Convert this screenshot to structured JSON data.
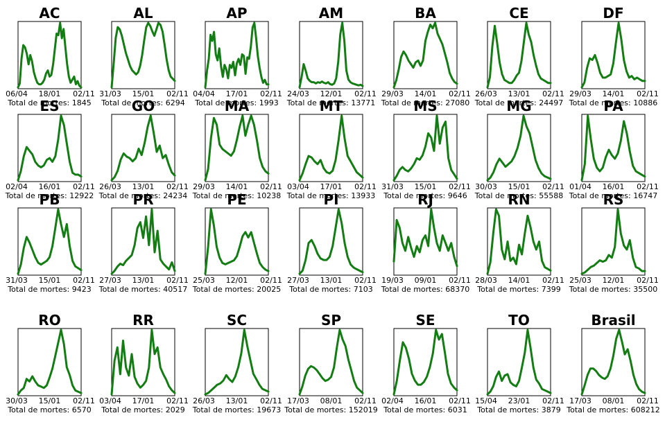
{
  "colors": {
    "line": "#137d13",
    "axis": "#000000"
  },
  "total_prefix": "Total de mortes: ",
  "chart_data": [
    {
      "type": "line",
      "title": "AC",
      "xticks": [
        "06/04",
        "18/01",
        "02/11"
      ],
      "total": "1845",
      "y": [
        0,
        5,
        38,
        55,
        52,
        44,
        30,
        42,
        34,
        20,
        12,
        6,
        4,
        4,
        6,
        10,
        18,
        22,
        14,
        16,
        30,
        50,
        70,
        68,
        84,
        64,
        76,
        52,
        30,
        14,
        6,
        10,
        14,
        4,
        8,
        2,
        0
      ]
    },
    {
      "type": "line",
      "title": "AL",
      "xticks": [
        "31/03",
        "15/01",
        "02/11"
      ],
      "total": "6294",
      "y": [
        0,
        22,
        46,
        56,
        54,
        48,
        40,
        32,
        26,
        20,
        16,
        14,
        12,
        14,
        20,
        30,
        44,
        56,
        60,
        57,
        52,
        48,
        54,
        60,
        58,
        52,
        40,
        26,
        16,
        10,
        8,
        6
      ]
    },
    {
      "type": "line",
      "title": "AP",
      "xticks": [
        "04/04",
        "17/01",
        "02/11"
      ],
      "total": "1993",
      "y": [
        0,
        22,
        38,
        70,
        62,
        74,
        44,
        36,
        52,
        28,
        14,
        30,
        24,
        12,
        30,
        26,
        34,
        16,
        32,
        38,
        30,
        44,
        42,
        18,
        40,
        38,
        54,
        80,
        86,
        66,
        42,
        26,
        14,
        6,
        10,
        4,
        4
      ]
    },
    {
      "type": "line",
      "title": "AM",
      "xticks": [
        "24/03",
        "12/01",
        "02/11"
      ],
      "total": "13771",
      "y": [
        0,
        16,
        36,
        26,
        14,
        10,
        8,
        8,
        6,
        8,
        7,
        9,
        7,
        6,
        8,
        5,
        4,
        6,
        14,
        40,
        82,
        100,
        72,
        26,
        12,
        8,
        6,
        5,
        4,
        3,
        4,
        2
      ]
    },
    {
      "type": "line",
      "title": "BA",
      "xticks": [
        "29/03",
        "14/01",
        "02/11"
      ],
      "total": "27080",
      "y": [
        0,
        8,
        20,
        34,
        40,
        36,
        30,
        26,
        22,
        28,
        30,
        24,
        30,
        52,
        62,
        70,
        66,
        72,
        60,
        54,
        48,
        38,
        28,
        16,
        10,
        6,
        4
      ]
    },
    {
      "type": "line",
      "title": "CE",
      "xticks": [
        "26/03",
        "13/01",
        "02/11"
      ],
      "total": "24497",
      "y": [
        0,
        14,
        56,
        84,
        60,
        34,
        18,
        10,
        8,
        6,
        6,
        10,
        16,
        20,
        36,
        62,
        88,
        72,
        62,
        44,
        30,
        18,
        12,
        10,
        8,
        6,
        6
      ]
    },
    {
      "type": "line",
      "title": "DF",
      "xticks": [
        "29/03",
        "14/01",
        "02/11"
      ],
      "total": "10886",
      "y": [
        0,
        6,
        24,
        36,
        34,
        40,
        30,
        18,
        12,
        12,
        14,
        16,
        30,
        56,
        80,
        60,
        34,
        20,
        12,
        14,
        10,
        12,
        10,
        8,
        8
      ]
    },
    {
      "type": "line",
      "title": "ES",
      "xticks": [
        "02/04",
        "16/01",
        "02/11"
      ],
      "total": "12922",
      "y": [
        0,
        10,
        26,
        36,
        32,
        28,
        20,
        16,
        14,
        16,
        22,
        24,
        20,
        26,
        44,
        70,
        60,
        40,
        20,
        8,
        6,
        6,
        4
      ]
    },
    {
      "type": "line",
      "title": "GO",
      "xticks": [
        "26/03",
        "13/01",
        "02/11"
      ],
      "total": "24234",
      "y": [
        0,
        4,
        12,
        26,
        34,
        30,
        28,
        24,
        28,
        40,
        32,
        48,
        68,
        82,
        60,
        36,
        44,
        28,
        32,
        20,
        10,
        6
      ]
    },
    {
      "type": "line",
      "title": "MA",
      "xticks": [
        "29/03",
        "14/01",
        "02/11"
      ],
      "total": "10238",
      "y": [
        0,
        10,
        38,
        56,
        50,
        32,
        28,
        26,
        24,
        22,
        26,
        36,
        48,
        58,
        40,
        50,
        58,
        50,
        36,
        20,
        12,
        8,
        6
      ]
    },
    {
      "type": "line",
      "title": "MT",
      "xticks": [
        "03/04",
        "17/01",
        "02/11"
      ],
      "total": "13933",
      "y": [
        0,
        10,
        24,
        36,
        34,
        28,
        24,
        30,
        18,
        12,
        10,
        14,
        30,
        60,
        96,
        62,
        36,
        28,
        20,
        12,
        8,
        4
      ]
    },
    {
      "type": "line",
      "title": "MS",
      "xticks": [
        "31/03",
        "15/01",
        "02/11"
      ],
      "total": "9646",
      "y": [
        0,
        6,
        14,
        18,
        14,
        12,
        16,
        22,
        30,
        28,
        34,
        46,
        64,
        58,
        40,
        88,
        50,
        72,
        80,
        30,
        14,
        8,
        2
      ]
    },
    {
      "type": "line",
      "title": "MG",
      "xticks": [
        "30/03",
        "15/01",
        "02/11"
      ],
      "total": "55588",
      "y": [
        0,
        4,
        12,
        24,
        32,
        26,
        20,
        24,
        28,
        36,
        48,
        66,
        96,
        80,
        70,
        50,
        30,
        18,
        10,
        6,
        4,
        2
      ]
    },
    {
      "type": "line",
      "title": "PA",
      "xticks": [
        "01/04",
        "16/01",
        "02/11"
      ],
      "total": "16747",
      "y": [
        0,
        18,
        72,
        46,
        24,
        14,
        10,
        14,
        26,
        34,
        28,
        24,
        30,
        44,
        66,
        52,
        32,
        16,
        10,
        8,
        6,
        4
      ]
    },
    {
      "type": "line",
      "title": "PB",
      "xticks": [
        "31/03",
        "15/01",
        "02/11"
      ],
      "total": "9423",
      "y": [
        0,
        10,
        28,
        40,
        34,
        26,
        18,
        12,
        10,
        12,
        14,
        18,
        30,
        50,
        70,
        54,
        40,
        54,
        30,
        14,
        8,
        6,
        4
      ]
    },
    {
      "type": "line",
      "title": "PR",
      "xticks": [
        "27/03",
        "13/01",
        "02/11"
      ],
      "total": "40517",
      "y": [
        0,
        4,
        10,
        14,
        12,
        18,
        22,
        26,
        40,
        64,
        72,
        50,
        80,
        40,
        90,
        30,
        60,
        20,
        14,
        10,
        6,
        16,
        4
      ]
    },
    {
      "type": "line",
      "title": "PE",
      "xticks": [
        "25/03",
        "12/01",
        "02/11"
      ],
      "total": "20025",
      "y": [
        0,
        40,
        96,
        72,
        40,
        24,
        16,
        14,
        16,
        18,
        20,
        26,
        40,
        56,
        62,
        54,
        62,
        46,
        30,
        16,
        10,
        6,
        4
      ]
    },
    {
      "type": "line",
      "title": "PI",
      "xticks": [
        "27/03",
        "13/01",
        "02/11"
      ],
      "total": "7103",
      "y": [
        0,
        4,
        18,
        40,
        44,
        36,
        26,
        20,
        18,
        18,
        22,
        36,
        60,
        84,
        66,
        40,
        22,
        12,
        8,
        6,
        4,
        2
      ]
    },
    {
      "type": "line",
      "title": "RJ",
      "xticks": [
        "19/03",
        "09/01",
        "02/11"
      ],
      "total": "68370",
      "y": [
        16,
        70,
        60,
        40,
        30,
        48,
        34,
        22,
        36,
        28,
        44,
        50,
        36,
        84,
        60,
        40,
        30,
        50,
        40,
        30,
        40,
        22,
        10
      ]
    },
    {
      "type": "line",
      "title": "RN",
      "xticks": [
        "28/03",
        "14/01",
        "02/11"
      ],
      "total": "7399",
      "y": [
        0,
        14,
        50,
        80,
        72,
        30,
        18,
        40,
        16,
        20,
        12,
        36,
        24,
        50,
        72,
        58,
        40,
        30,
        40,
        16,
        8,
        6,
        4
      ]
    },
    {
      "type": "line",
      "title": "RS",
      "xticks": [
        "25/03",
        "12/01",
        "02/11"
      ],
      "total": "35500",
      "y": [
        0,
        2,
        6,
        10,
        12,
        16,
        20,
        18,
        20,
        28,
        24,
        40,
        96,
        60,
        42,
        36,
        50,
        24,
        10,
        8,
        4,
        4
      ]
    },
    {
      "type": "line",
      "title": "RO",
      "xticks": [
        "30/03",
        "15/01",
        "02/11"
      ],
      "total": "6570",
      "y": [
        0,
        6,
        10,
        24,
        20,
        28,
        20,
        14,
        12,
        10,
        14,
        26,
        40,
        60,
        80,
        100,
        78,
        42,
        30,
        14,
        6,
        4,
        2
      ]
    },
    {
      "type": "line",
      "title": "RR",
      "xticks": [
        "03/04",
        "17/01",
        "02/11"
      ],
      "total": "2029",
      "y": [
        0,
        50,
        70,
        30,
        80,
        40,
        28,
        60,
        26,
        16,
        10,
        14,
        20,
        40,
        96,
        60,
        70,
        40,
        30,
        22,
        12,
        6,
        2
      ]
    },
    {
      "type": "line",
      "title": "SC",
      "xticks": [
        "26/03",
        "13/01",
        "02/11"
      ],
      "total": "19673",
      "y": [
        0,
        2,
        6,
        10,
        14,
        16,
        20,
        28,
        22,
        18,
        26,
        40,
        60,
        94,
        70,
        50,
        30,
        22,
        14,
        8,
        6,
        4
      ]
    },
    {
      "type": "line",
      "title": "SP",
      "xticks": [
        "17/03",
        "08/01",
        "02/11"
      ],
      "total": "152019",
      "y": [
        0,
        12,
        28,
        38,
        42,
        40,
        36,
        30,
        24,
        20,
        22,
        26,
        40,
        70,
        96,
        82,
        72,
        52,
        36,
        20,
        10,
        6,
        2
      ]
    },
    {
      "type": "line",
      "title": "SE",
      "xticks": [
        "02/04",
        "16/01",
        "02/11"
      ],
      "total": "6031",
      "y": [
        0,
        20,
        50,
        76,
        68,
        52,
        30,
        20,
        14,
        14,
        18,
        26,
        40,
        60,
        94,
        80,
        88,
        60,
        30,
        16,
        10,
        6
      ]
    },
    {
      "type": "line",
      "title": "TO",
      "xticks": [
        "15/04",
        "23/01",
        "02/11"
      ],
      "total": "3879",
      "y": [
        0,
        4,
        12,
        26,
        34,
        20,
        28,
        30,
        18,
        14,
        12,
        20,
        40,
        62,
        96,
        70,
        40,
        22,
        16,
        8,
        6,
        4,
        2
      ]
    },
    {
      "type": "line",
      "title": "Brasil",
      "xticks": [
        "17/03",
        "08/01",
        "02/11"
      ],
      "total": "608212",
      "y": [
        0,
        14,
        30,
        40,
        40,
        36,
        30,
        26,
        24,
        28,
        40,
        60,
        86,
        100,
        82,
        62,
        70,
        52,
        30,
        16,
        8,
        4,
        2
      ]
    }
  ]
}
